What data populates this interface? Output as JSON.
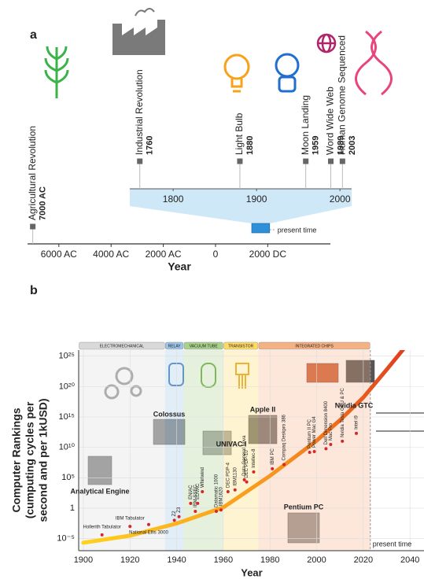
{
  "chart_data": [
    {
      "type": "timeline",
      "panel_label": "a",
      "xlabel": "Year",
      "xlim": [
        -7200,
        4400
      ],
      "xticks": [
        {
          "value": -6000,
          "label": "6000 AC"
        },
        {
          "value": -4000,
          "label": "4000 AC"
        },
        {
          "value": -2000,
          "label": "2000 AC"
        },
        0,
        {
          "value": 2000,
          "label": "2000 DC"
        }
      ],
      "zoom_xlim": [
        1748,
        2014
      ],
      "zoom_xticks": [
        1800,
        1900,
        2000
      ],
      "present_label": "present time",
      "events": [
        {
          "name": "Agricultural Revolution",
          "year": {
            "value": -7000,
            "label": "7000 AC"
          }
        },
        {
          "name": "Industrial Revolution",
          "year": 1760
        },
        {
          "name": "Light Bulb",
          "year": 1880
        },
        {
          "name": "Moon Landing",
          "year": 1959
        },
        {
          "name": "Word Wide Web",
          "year": 1989
        },
        {
          "name": "Human Genome Sequenced",
          "year": 2003
        }
      ]
    },
    {
      "type": "scatter",
      "panel_label": "b",
      "xlabel": "Year",
      "ylabel": [
        "Computer Rankings",
        "(cumputing cycles per",
        "second and per 1kUSD)"
      ],
      "log_y": true,
      "grid": true,
      "xlim": [
        1898,
        2046
      ],
      "xticks": [
        1900,
        1920,
        1940,
        1960,
        1980,
        2000,
        2020,
        2040
      ],
      "ylim": [
        1e-07,
        1e+26
      ],
      "yticks": [
        {
          "value": 1e-05,
          "label": "10⁻⁵"
        },
        1,
        {
          "value": 100000.0,
          "label": "10⁵"
        },
        {
          "value": 10000000000.0,
          "label": "10¹⁰"
        },
        {
          "value": 1000000000000000.0,
          "label": "10¹⁵"
        },
        {
          "value": 1e+20,
          "label": "10²⁰"
        },
        {
          "value": 1e+25,
          "label": "10²⁵"
        }
      ],
      "eras": [
        {
          "name": "ELECTROMECHANICAL",
          "range": [
            1898,
            1935
          ],
          "color": "#d9d9d9"
        },
        {
          "name": "RELAY",
          "range": [
            1935,
            1943
          ],
          "color": "#9dc3e6"
        },
        {
          "name": "VACUUM TUBE",
          "range": [
            1943,
            1960
          ],
          "color": "#a9d18e"
        },
        {
          "name": "TRANSISTOR",
          "range": [
            1960,
            1975
          ],
          "color": "#ffd966"
        },
        {
          "name": "INTEGRATED CHIPS",
          "range": [
            1975,
            2023
          ],
          "color": "#f4b183"
        }
      ],
      "present_label": "present time",
      "present_year": 2023,
      "point_color": "#d62728",
      "points": {
        "names": [
          "Hollerith Tabulator",
          "IBM Tabulator",
          "National Ellis 3000",
          "Z2",
          "Z3",
          "ENIAC",
          "IBM SSEC",
          "EDVAC",
          "Whirlwind",
          "Datamatic 1000",
          "IBM1620",
          "DEC PDP-4",
          "IBM1130",
          "Data General Nova",
          "DEC PDP-10",
          "Intellec-8",
          "IBM PC",
          "Compaq Deskpro 386",
          "Pentium II PC",
          "Power Mac G4",
          "Dell Dimension 8400",
          "Mac Pro",
          "Nvidia Tesla GPU & PC",
          "Intel i9"
        ],
        "x": [
          1908,
          1920,
          1928,
          1939,
          1941,
          1946,
          1948,
          1949,
          1951,
          1957,
          1959,
          1962,
          1965,
          1969,
          1970,
          1973,
          1981,
          1986,
          1997,
          1999,
          2004,
          2006,
          2011,
          2017
        ],
        "values": [
          4e-05,
          0.001,
          0.002,
          0.01,
          0.04,
          6,
          0.3,
          6,
          500,
          0.3,
          0.5,
          500,
          1000,
          46000,
          20000,
          900000,
          3000000,
          15000000,
          1500000000,
          2000000000,
          6000000000,
          30000000000,
          100000000000,
          2000000000000
        ]
      },
      "highlights": [
        "Analytical Engine",
        "Colossus",
        "UNIVAC I",
        "Apple II",
        "Pentium PC",
        "Nvidia GTC"
      ],
      "trend": {
        "x": [
          1900,
          1920,
          1940,
          1960,
          1980,
          2000,
          2010,
          2020,
          2030,
          2040
        ],
        "values": [
          2e-06,
          3e-05,
          0.003,
          1.3,
          200000,
          130000000000,
          300000000000000,
          1.6e+18,
          6e+22,
          3e+27
        ]
      }
    }
  ]
}
